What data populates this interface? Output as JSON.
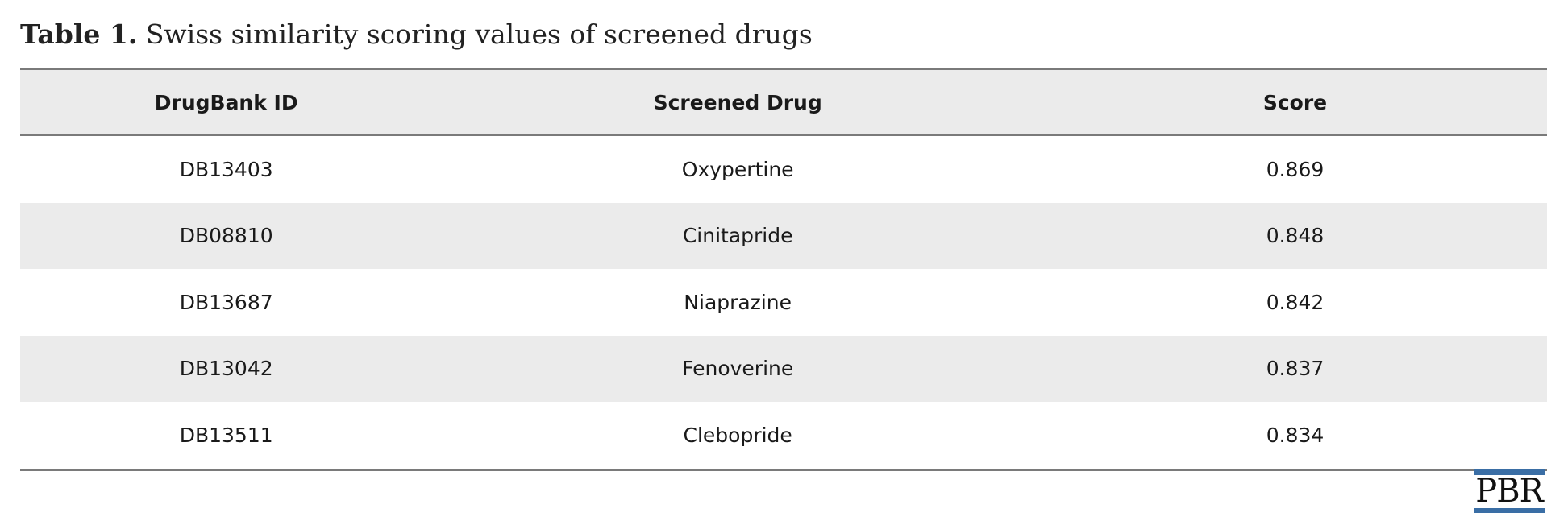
{
  "caption": {
    "label": "Table 1.",
    "text": " Swiss similarity scoring values of screened drugs"
  },
  "table": {
    "headers": [
      "DrugBank ID",
      "Screened Drug",
      "Score"
    ],
    "rows": [
      [
        "DB13403",
        "Oxypertine",
        "0.869"
      ],
      [
        "DB08810",
        "Cinitapride",
        "0.848"
      ],
      [
        "DB13687",
        "Niaprazine",
        "0.842"
      ],
      [
        "DB13042",
        "Fenoverine",
        "0.837"
      ],
      [
        "DB13511",
        "Clebopride",
        "0.834"
      ]
    ]
  },
  "logo": {
    "text": "PBR",
    "color": "#3a6ea5"
  }
}
